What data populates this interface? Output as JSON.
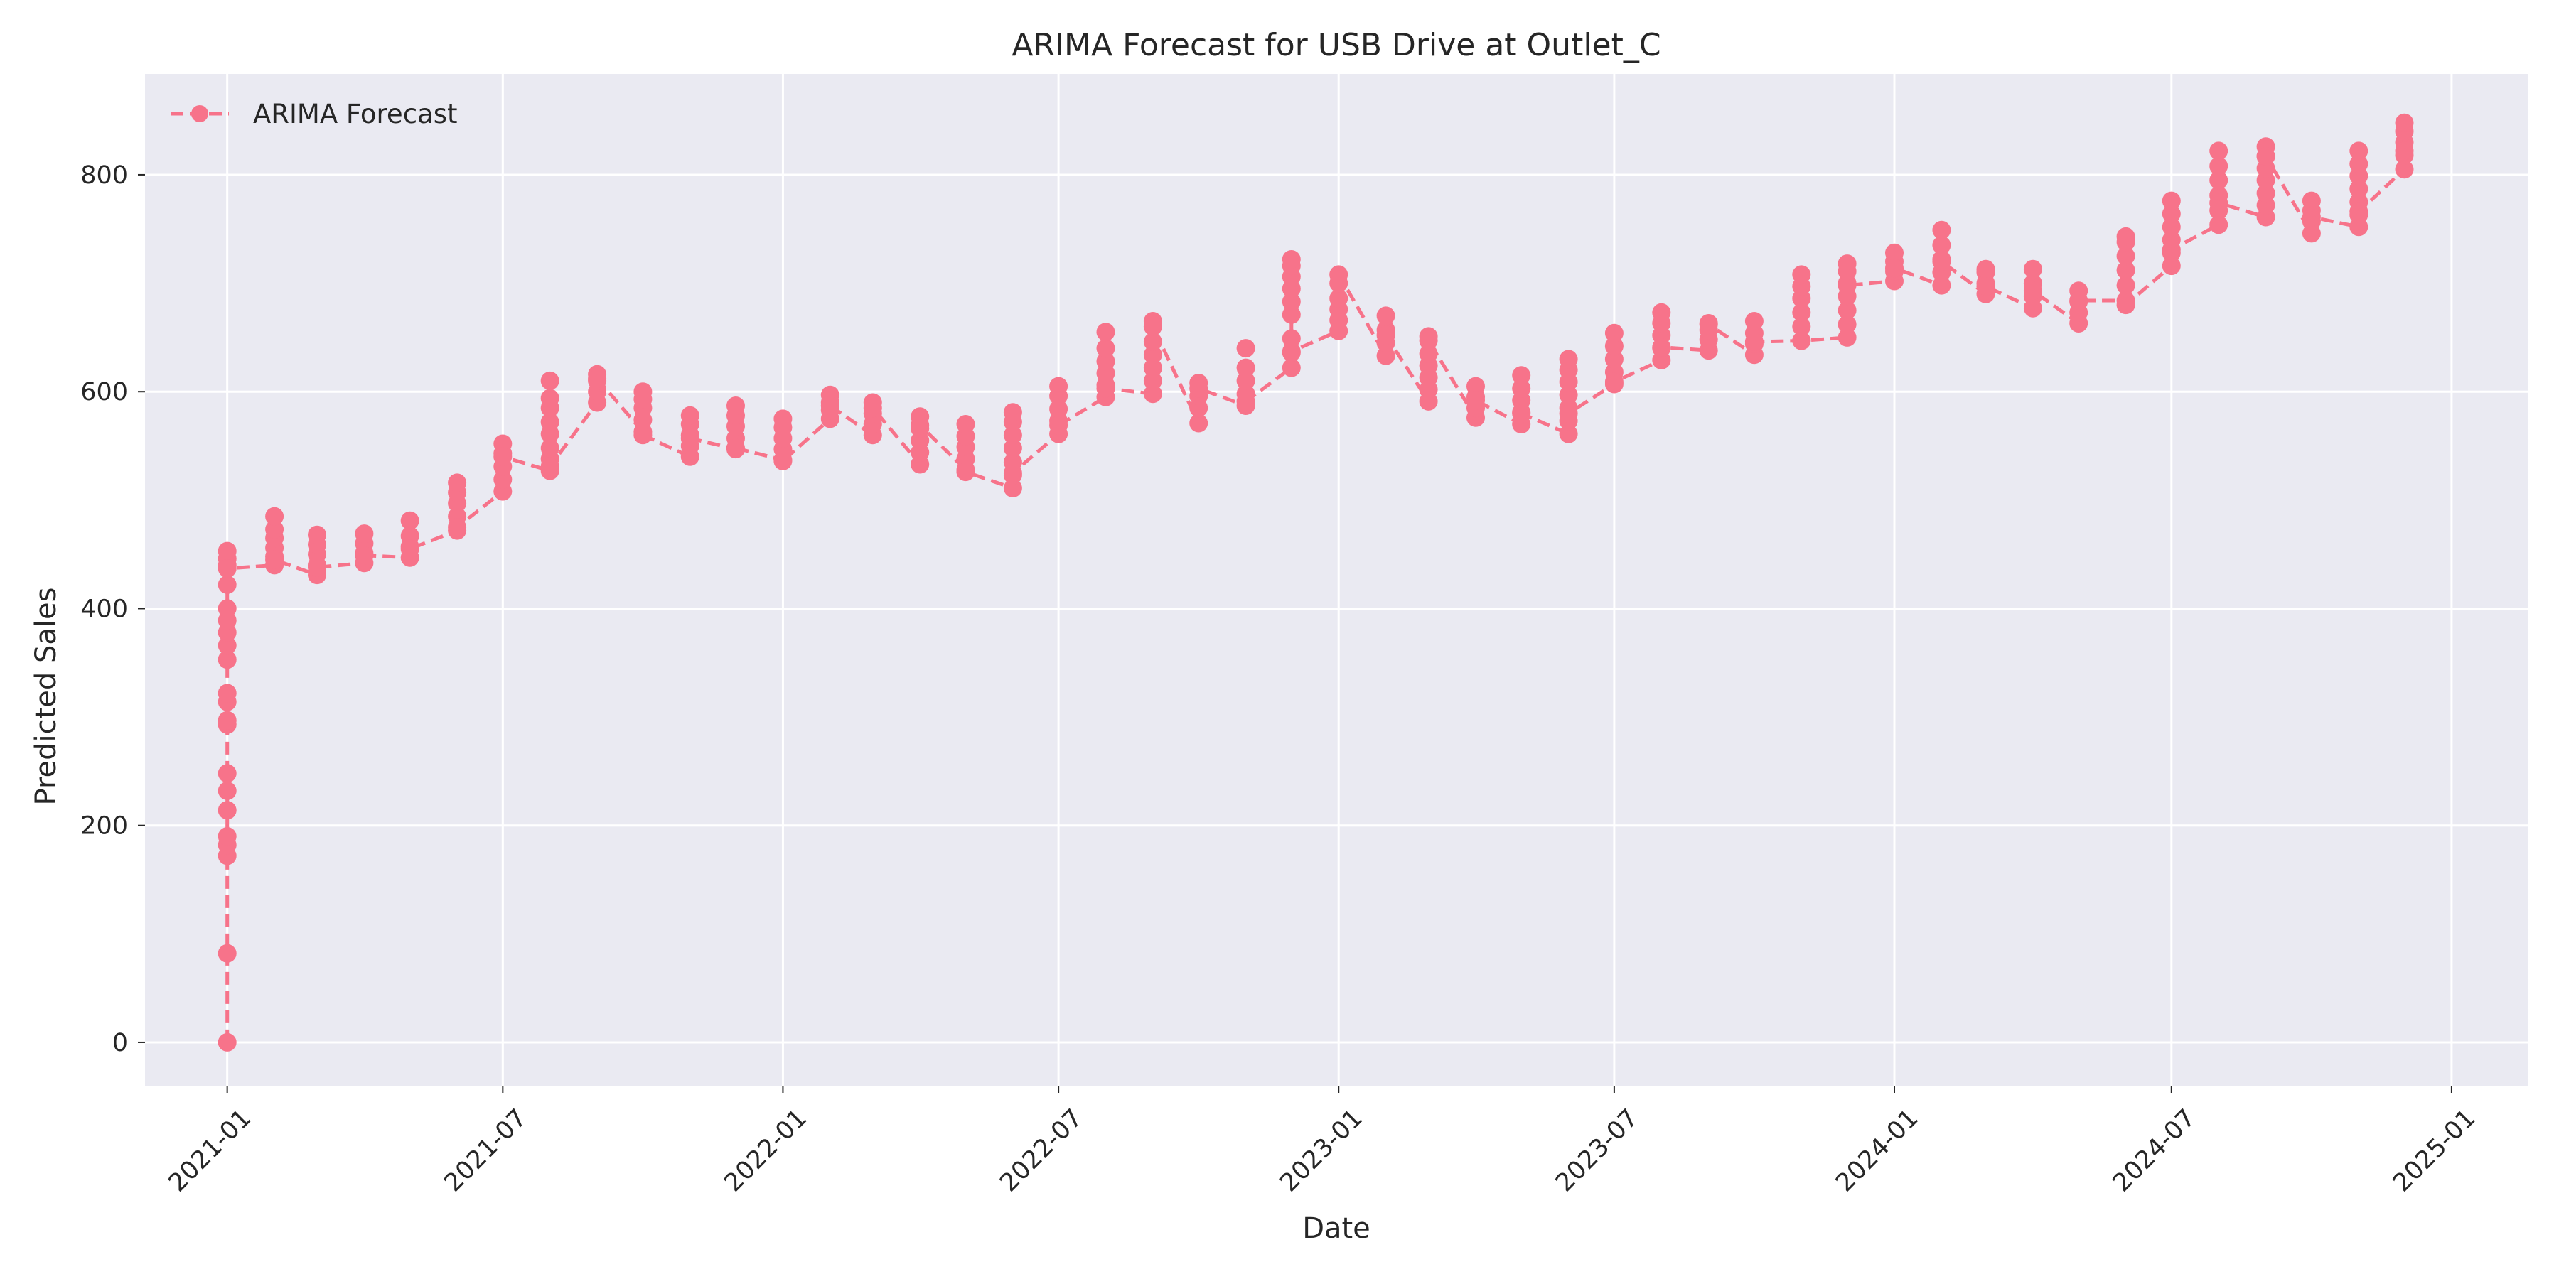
{
  "chart_data": {
    "type": "line",
    "title": "ARIMA Forecast for USB Drive at Outlet_C",
    "xlabel": "Date",
    "ylabel": "Predicted Sales",
    "x_ticks": [
      "2021-01",
      "2021-07",
      "2022-01",
      "2022-07",
      "2023-01",
      "2023-07",
      "2024-01",
      "2024-07",
      "2025-01"
    ],
    "y_ticks": [
      0,
      200,
      400,
      600,
      800
    ],
    "xlim": [
      "2020-11-08",
      "2025-02-20"
    ],
    "ylim": [
      -40,
      893
    ],
    "grid": true,
    "legend_position": "top-left",
    "colors": {
      "series": "#f7738a",
      "plot_background": "#eaeaf2"
    },
    "series": [
      {
        "name": "ARIMA Forecast",
        "marker": "circle",
        "line_style": "dashed",
        "points": [
          {
            "x": "2021-01-01",
            "values": [
              0,
              82,
              172,
              182,
              190,
              214,
              232,
              248,
              293,
              297,
              314,
              322,
              353,
              366,
              378,
              389,
              400,
              422,
              440,
              446,
              453,
              437
            ]
          },
          {
            "x": "2021-02-01",
            "values": [
              440,
              448,
              456,
              465,
              473,
              485,
              445
            ]
          },
          {
            "x": "2021-03-01",
            "values": [
              431,
              440,
              450,
              459,
              468,
              438
            ]
          },
          {
            "x": "2021-04-01",
            "values": [
              442,
              451,
              460,
              469,
              449
            ]
          },
          {
            "x": "2021-05-01",
            "values": [
              447,
              457,
              467,
              481,
              455
            ]
          },
          {
            "x": "2021-06-01",
            "values": [
              472,
              485,
              497,
              507,
              516,
              475
            ]
          },
          {
            "x": "2021-07-01",
            "values": [
              508,
              519,
              531,
              543,
              552,
              540
            ]
          },
          {
            "x": "2021-08-01",
            "values": [
              527,
              538,
              548,
              561,
              572,
              585,
              594,
              610,
              531
            ]
          },
          {
            "x": "2021-09-01",
            "values": [
              590,
              600,
              610,
              616,
              612
            ]
          },
          {
            "x": "2021-10-01",
            "values": [
              563,
              574,
              585,
              593,
              600,
              560
            ]
          },
          {
            "x": "2021-11-01",
            "values": [
              540,
              550,
              560,
              570,
              578,
              557
            ]
          },
          {
            "x": "2021-12-01",
            "values": [
              547,
              557,
              568,
              578,
              587,
              548
            ]
          },
          {
            "x": "2022-01-01",
            "values": [
              537,
              547,
              557,
              567,
              575,
              536
            ]
          },
          {
            "x": "2022-02-01",
            "values": [
              575,
              583,
              590,
              597,
              587
            ]
          },
          {
            "x": "2022-03-01",
            "values": [
              560,
              570,
              580,
              590,
              585
            ]
          },
          {
            "x": "2022-04-01",
            "values": [
              533,
              544,
              555,
              566,
              577,
              569
            ]
          },
          {
            "x": "2022-05-01",
            "values": [
              528,
              538,
              549,
              559,
              570,
              526
            ]
          },
          {
            "x": "2022-06-01",
            "values": [
              511,
              523,
              535,
              548,
              560,
              572,
              581,
              525
            ]
          },
          {
            "x": "2022-07-01",
            "values": [
              561,
              573,
              584,
              596,
              605,
              569
            ]
          },
          {
            "x": "2022-08-01",
            "values": [
              595,
              606,
              617,
              628,
              640,
              655,
              603
            ]
          },
          {
            "x": "2022-09-01",
            "values": [
              598,
              610,
              622,
              634,
              646,
              665,
              660
            ]
          },
          {
            "x": "2022-10-01",
            "values": [
              571,
              585,
              596,
              608,
              603
            ]
          },
          {
            "x": "2022-11-01",
            "values": [
              587,
              598,
              610,
              622,
              640,
              591
            ]
          },
          {
            "x": "2022-12-01",
            "values": [
              622,
              636,
              649,
              671,
              683,
              695,
              706,
              716,
              722,
              637
            ]
          },
          {
            "x": "2023-01-01",
            "values": [
              656,
              666,
              676,
              686,
              700,
              708
            ]
          },
          {
            "x": "2023-02-01",
            "values": [
              633,
              645,
              657,
              670,
              652
            ]
          },
          {
            "x": "2023-03-01",
            "values": [
              591,
              602,
              613,
              624,
              635,
              651,
              647
            ]
          },
          {
            "x": "2023-04-01",
            "values": [
              576,
              585,
              595,
              605,
              592
            ]
          },
          {
            "x": "2023-05-01",
            "values": [
              570,
              581,
              592,
              603,
              615,
              580
            ]
          },
          {
            "x": "2023-06-01",
            "values": [
              561,
              573,
              585,
              597,
              609,
              620,
              630,
              580
            ]
          },
          {
            "x": "2023-07-01",
            "values": [
              607,
              618,
              630,
              642,
              654,
              609
            ]
          },
          {
            "x": "2023-08-01",
            "values": [
              629,
              640,
              652,
              663,
              673,
              641
            ]
          },
          {
            "x": "2023-09-01",
            "values": [
              638,
              648,
              657,
              663,
              662
            ]
          },
          {
            "x": "2023-10-01",
            "values": [
              634,
              644,
              654,
              665,
              646
            ]
          },
          {
            "x": "2023-11-01",
            "values": [
              647,
              660,
              673,
              686,
              697,
              708,
              647
            ]
          },
          {
            "x": "2023-12-01",
            "values": [
              650,
              662,
              675,
              688,
              700,
              711,
              718,
              698
            ]
          },
          {
            "x": "2024-01-01",
            "values": [
              702,
              711,
              720,
              728,
              714
            ]
          },
          {
            "x": "2024-02-01",
            "values": [
              698,
              710,
              722,
              735,
              749,
              720
            ]
          },
          {
            "x": "2024-03-01",
            "values": [
              690,
              700,
              710,
              713,
              697
            ]
          },
          {
            "x": "2024-04-01",
            "values": [
              677,
              688,
              700,
              713,
              693
            ]
          },
          {
            "x": "2024-05-01",
            "values": [
              663,
              673,
              683,
              693,
              684
            ]
          },
          {
            "x": "2024-06-01",
            "values": [
              684,
              698,
              712,
              725,
              738,
              743,
              680
            ]
          },
          {
            "x": "2024-07-01",
            "values": [
              716,
              728,
              740,
              752,
              764,
              776,
              731
            ]
          },
          {
            "x": "2024-08-01",
            "values": [
              754,
              767,
              781,
              795,
              808,
              822,
              774
            ]
          },
          {
            "x": "2024-09-01",
            "values": [
              761,
              772,
              783,
              795,
              806,
              817,
              826,
              817
            ]
          },
          {
            "x": "2024-10-01",
            "values": [
              746,
              757,
              767,
              776,
              761
            ]
          },
          {
            "x": "2024-11-01",
            "values": [
              752,
              763,
              775,
              787,
              799,
              810,
              822,
              766
            ]
          },
          {
            "x": "2024-12-01",
            "values": [
              805,
              818,
              830,
              840,
              848,
              822
            ]
          }
        ]
      }
    ]
  }
}
